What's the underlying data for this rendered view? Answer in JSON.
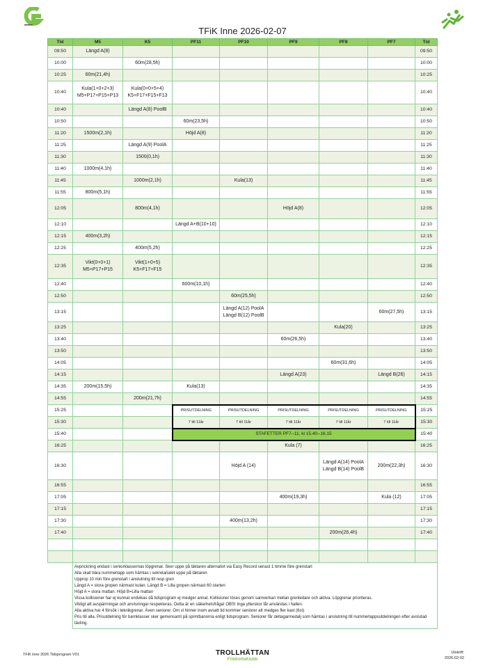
{
  "title": "TFiK Inne 2026-02-07",
  "colors": {
    "header": "#94cf62",
    "banner": "#92d050",
    "alt_row": "#edf2e3",
    "grid": "#8fd19a"
  },
  "columns": [
    "Tid",
    "M5",
    "K5",
    "PF11",
    "PF10",
    "PF9",
    "PF8",
    "PF7",
    "Tid"
  ],
  "rows": [
    {
      "time": "09:50",
      "cells": [
        "Längd A(8)",
        "",
        "",
        "",
        "",
        "",
        ""
      ]
    },
    {
      "time": "10:00",
      "cells": [
        "",
        "60m(28,5h)",
        "",
        "",
        "",
        "",
        ""
      ]
    },
    {
      "time": "10:25",
      "cells": [
        "60m(21,4h)",
        "",
        "",
        "",
        "",
        "",
        ""
      ]
    },
    {
      "time": "10:40",
      "cells": [
        "Kula(1+0+2+3)\nM5+P17+P15+P13",
        "Kula(0+0+5+4)\nK5+F17+F15+F13",
        "",
        "",
        "",
        "",
        ""
      ]
    },
    {
      "time": "10:40",
      "cells": [
        "",
        "Längd A(8) PoolB",
        "",
        "",
        "",
        "",
        ""
      ]
    },
    {
      "time": "10:50",
      "cells": [
        "",
        "",
        "60m(23,5h)",
        "",
        "",
        "",
        ""
      ]
    },
    {
      "time": "11:20",
      "cells": [
        "1500m(2,1h)",
        "",
        "Höjd A(8)",
        "",
        "",
        "",
        ""
      ]
    },
    {
      "time": "11:25",
      "cells": [
        "",
        "Längd A(9) PoolA",
        "",
        "",
        "",
        "",
        ""
      ]
    },
    {
      "time": "11:30",
      "cells": [
        "",
        "1500(0,1h)",
        "",
        "",
        "",
        "",
        ""
      ]
    },
    {
      "time": "11:40",
      "cells": [
        "1000m(4,1h)",
        "",
        "",
        "",
        "",
        "",
        ""
      ]
    },
    {
      "time": "11:45",
      "cells": [
        "",
        "1000m(2,1h)",
        "",
        "Kula(13)",
        "",
        "",
        ""
      ]
    },
    {
      "time": "11:55",
      "cells": [
        "800m(5,1h)",
        "",
        "",
        "",
        "",
        "",
        ""
      ]
    },
    {
      "time": "12:05",
      "cells": [
        "",
        "800m(4,1h)",
        "",
        "",
        "Höjd A(8)",
        "",
        ""
      ]
    },
    {
      "time": "12:10",
      "cells": [
        "",
        "",
        "Längd A+B(10+10)",
        "",
        "",
        "",
        ""
      ]
    },
    {
      "time": "12:15",
      "cells": [
        "400m(3,2h)",
        "",
        "",
        "",
        "",
        "",
        ""
      ]
    },
    {
      "time": "12:25",
      "cells": [
        "",
        "400m(5,2h)",
        "",
        "",
        "",
        "",
        ""
      ]
    },
    {
      "time": "12:35",
      "cells": [
        "Vikt(0+0+1)\nM5+P17+P15",
        "Vikt(1+0+5)\nK5+F17+F15",
        "",
        "",
        "",
        "",
        ""
      ]
    },
    {
      "time": "12:40",
      "cells": [
        "",
        "",
        "600m(10,1h)",
        "",
        "",
        "",
        ""
      ]
    },
    {
      "time": "12:50",
      "cells": [
        "",
        "",
        "",
        "60m(25,5h)",
        "",
        "",
        ""
      ]
    },
    {
      "time": "13:15",
      "cells": [
        "",
        "",
        "",
        "Längd A(12) PoolA\nLängd B(12) PoolB",
        "",
        "",
        "60m(27,5h)"
      ]
    },
    {
      "time": "13:25",
      "cells": [
        "",
        "",
        "",
        "",
        "",
        "Kula(20)",
        ""
      ]
    },
    {
      "time": "13:40",
      "cells": [
        "",
        "",
        "",
        "",
        "60m(26,5h)",
        "",
        ""
      ]
    },
    {
      "time": "13:50",
      "cells": [
        "",
        "",
        "",
        "",
        "",
        "",
        ""
      ]
    },
    {
      "time": "14:05",
      "cells": [
        "",
        "",
        "",
        "",
        "",
        "60m(31,6h)",
        ""
      ]
    },
    {
      "time": "14:15",
      "cells": [
        "",
        "",
        "",
        "",
        "Längd A(23)",
        "",
        "Längd B(26)"
      ]
    },
    {
      "time": "14:35",
      "cells": [
        "200m(15,5h)",
        "",
        "Kula(13)",
        "",
        "",
        "",
        ""
      ]
    },
    {
      "time": "14:55",
      "cells": [
        "",
        "200m(21,7h)",
        "",
        "",
        "",
        "",
        ""
      ]
    },
    {
      "time": "15:25",
      "cells": [
        "",
        "",
        "PRISUTDELNING",
        "PRISUTDELNING",
        "PRISUTDELNING",
        "PRISUTDELNING",
        "PRISUTDELNING"
      ]
    },
    {
      "time": "15:30",
      "cells": [
        "",
        "",
        "7 till 11år",
        "7 till 11år",
        "7 till 11år",
        "7 till 11år",
        "7 till 11år"
      ]
    },
    {
      "time": "15:40",
      "cells": [
        "",
        ""
      ],
      "banner": "STAFETTER PF7--11,    kl 15.40--16.15"
    },
    {
      "time": "16:25",
      "cells": [
        "",
        "",
        "",
        "",
        "Kula (7)",
        "",
        ""
      ]
    },
    {
      "time": "16:30",
      "cells": [
        "",
        "",
        "",
        "Höjd A (14)",
        "",
        "Längd A(14) PoolA\nLängd B(14) PoolB",
        "200m(22,3h)"
      ]
    },
    {
      "time": "16:55",
      "cells": [
        "",
        "",
        "",
        "",
        "",
        "",
        ""
      ]
    },
    {
      "time": "17:05",
      "cells": [
        "",
        "",
        "",
        "",
        "400m(19,3h)",
        "",
        "Kula (12)"
      ]
    },
    {
      "time": "17:15",
      "cells": [
        "",
        "",
        "",
        "",
        "",
        "",
        ""
      ]
    },
    {
      "time": "17:30",
      "cells": [
        "",
        "",
        "",
        "400m(13,2h)",
        "",
        "",
        ""
      ]
    },
    {
      "time": "17:40",
      "cells": [
        "",
        "",
        "",
        "",
        "",
        "200m(26,4h)",
        ""
      ]
    },
    {
      "time": "",
      "cells": [
        "",
        "",
        "",
        "",
        "",
        "",
        ""
      ]
    },
    {
      "time": "",
      "cells": [
        "",
        "",
        "",
        "",
        "",
        "",
        ""
      ]
    }
  ],
  "notes": [
    "Avprickning endast i seniorklassernas löpgrenar. Sker uppe på läktaren alternativt via Easy Record senast 1 timme före grenstart",
    "Alla skall bära nummerlapp som hämtas i sekretariatet uppe på läktaren",
    "Upprop 10 min före grenstart i anslutning till resp gren",
    "Längd A = stora gropen närmast kulan. Längd B = Lilla gropen närmast 60 starten",
    "Höjd A = stora mattan. Höjd B=Lilla mattan",
    "Vissa kollisioner har ej kunnat undvikas då tidsprogram ej medger annat. Kollisioner löses genom samverkan mellan grenledare och aktiva. Löpgrenar prioriteras.",
    "Viktigt att avspärrningar och anvisningar  respekteras. Detta är en säkerhetsfråga! OBS! Inga ytterskor får användas i hallen.",
    "Alla aktiva har 4 försök i teknikgrenar. Även seniorer. Om vi hinner inom avsatt tid kommer seniorer att medges fler kast (6st)",
    "Pris till alla. Prisutdelning för barnklasser sker gemensamt på sprintbanorna enligt tidsprogram. Seniorer får deltagarmedalj som hämtas i anslutning till nummerlappsutdelningen efter avslutad tävling."
  ],
  "footer": {
    "left": "TFiK inne 2026 Tidsprogram V01",
    "logo_line1": "TROLLHÄTTAN",
    "logo_line2": "FriidrottsKlubb",
    "printed_label": "Utskrift:",
    "printed_date": "2026-02-02"
  }
}
